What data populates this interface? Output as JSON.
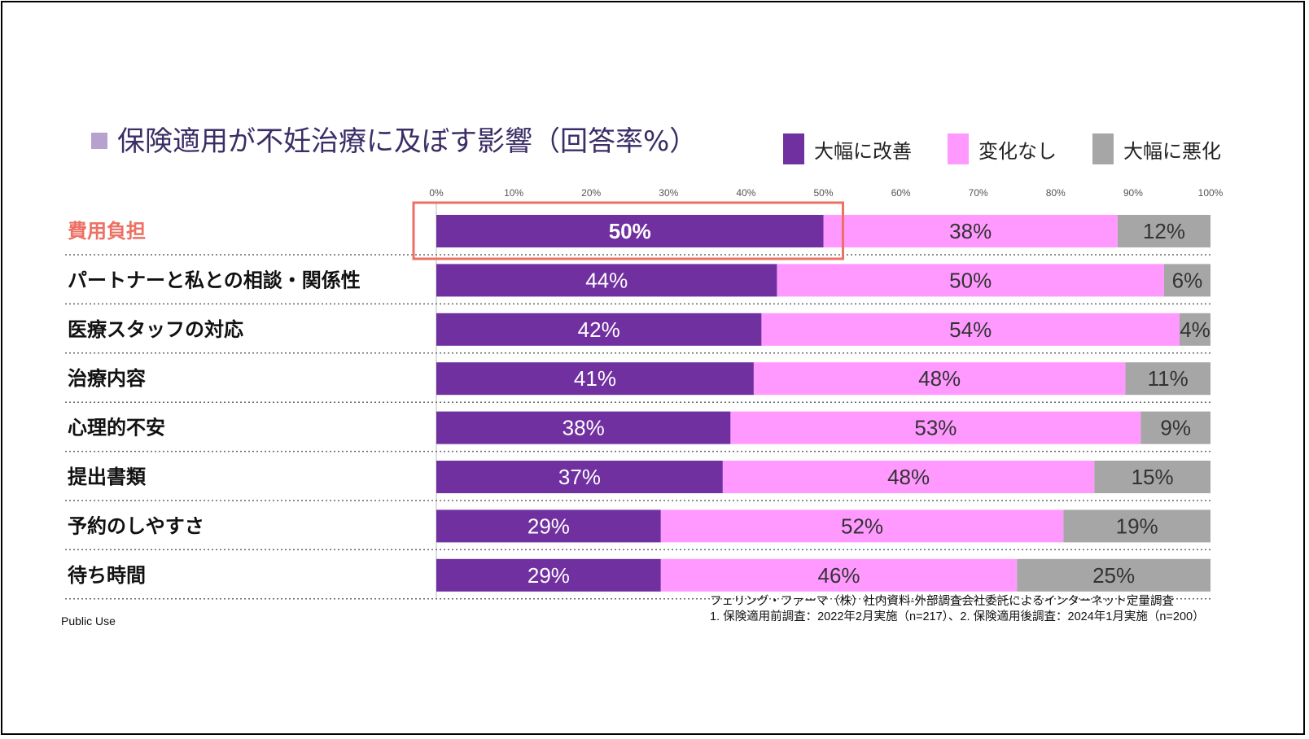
{
  "title": "保険適用が不妊治療に及ぼす影響（回答率%）",
  "colors": {
    "improved": "#7030a0",
    "unchanged": "#ff99ff",
    "worsened": "#a6a6a6",
    "highlight": "#ec7063",
    "title": "#3b2d66"
  },
  "chart_data": {
    "type": "bar",
    "orientation": "horizontal",
    "stacked": true,
    "title": "保険適用が不妊治療に及ぼす影響（回答率%）",
    "xlim": [
      0,
      100
    ],
    "x_ticks": [
      "0%",
      "10%",
      "20%",
      "30%",
      "40%",
      "50%",
      "60%",
      "70%",
      "80%",
      "90%",
      "100%"
    ],
    "categories": [
      "費用負担",
      "パートナーと私との相談・関係性",
      "医療スタッフの対応",
      "治療内容",
      "心理的不安",
      "提出書類",
      "予約のしやすさ",
      "待ち時間"
    ],
    "series": [
      {
        "name": "大幅に改善",
        "values": [
          50,
          44,
          42,
          41,
          38,
          37,
          29,
          29
        ],
        "labels": [
          "50%",
          "44%",
          "42%",
          "41%",
          "38%",
          "37%",
          "29%",
          "29%"
        ]
      },
      {
        "name": "変化なし",
        "values": [
          38,
          50,
          54,
          48,
          53,
          48,
          52,
          46
        ],
        "labels": [
          "38%",
          "50%",
          "54%",
          "48%",
          "53%",
          "48%",
          "52%",
          "46%"
        ]
      },
      {
        "name": "大幅に悪化",
        "values": [
          12,
          6,
          4,
          11,
          9,
          15,
          19,
          25
        ],
        "labels": [
          "12%",
          "6%",
          "4%",
          "11%",
          "9%",
          "15%",
          "19%",
          "25%"
        ]
      }
    ],
    "highlighted_category": "費用負担",
    "legend_position": "top-right"
  },
  "footnote": {
    "line1": "フェリング・ファーマ（株）社内資料-外部調査会社委託によるインターネット定量調査",
    "line2": "1. 保険適用前調査：2022年2月実施（n=217）、2. 保険適用後調査：2024年1月実施（n=200）"
  },
  "footer_left": "Public Use"
}
